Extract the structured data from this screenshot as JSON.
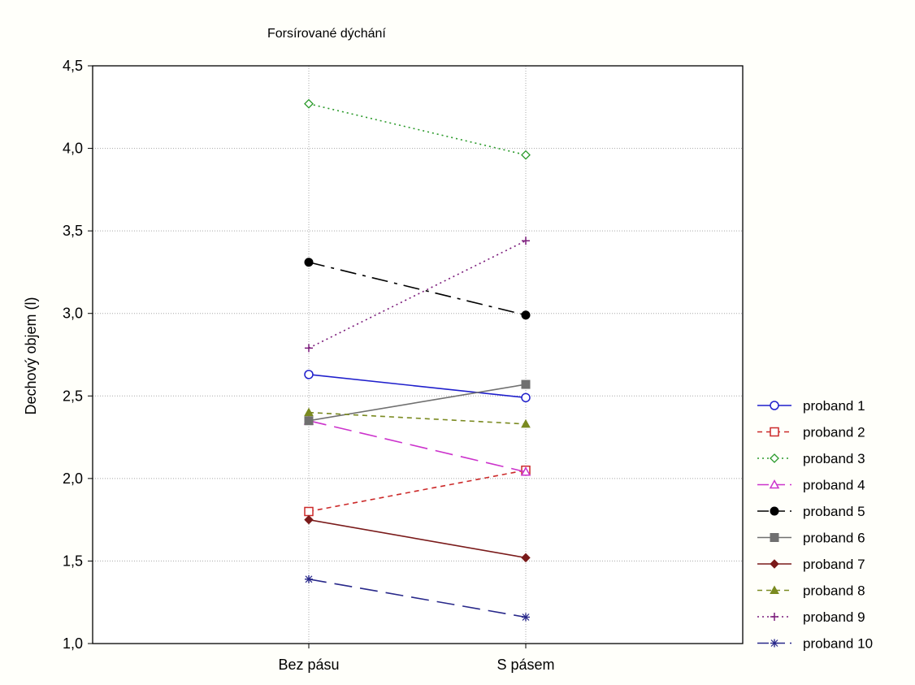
{
  "chart_data": {
    "type": "line",
    "title": "Forsírované dýchání",
    "xlabel": "",
    "ylabel": "Dechový objem (l)",
    "categories": [
      "Bez pásu",
      "S pásem"
    ],
    "ylim": [
      1.0,
      4.5
    ],
    "yticks": [
      1.0,
      1.5,
      2.0,
      2.5,
      3.0,
      3.5,
      4.0,
      4.5
    ],
    "ytick_labels": [
      "1,0",
      "1,5",
      "2,0",
      "2,5",
      "3,0",
      "3,5",
      "4,0",
      "4,5"
    ],
    "grid": true,
    "legend_position": "right",
    "series": [
      {
        "name": "proband 1",
        "values": [
          2.63,
          2.49
        ],
        "color": "#1f1fcc",
        "dash": "solid",
        "marker": "circle-open"
      },
      {
        "name": "proband 2",
        "values": [
          1.8,
          2.05
        ],
        "color": "#cc2a2a",
        "dash": "dashed",
        "marker": "square-open"
      },
      {
        "name": "proband 3",
        "values": [
          4.27,
          3.96
        ],
        "color": "#2a9a2a",
        "dash": "dotted",
        "marker": "diamond-open"
      },
      {
        "name": "proband 4",
        "values": [
          2.35,
          2.04
        ],
        "color": "#cc33cc",
        "dash": "longdash",
        "marker": "triangle-open"
      },
      {
        "name": "proband 5",
        "values": [
          3.31,
          2.99
        ],
        "color": "#000000",
        "dash": "dashdot",
        "marker": "circle-filled"
      },
      {
        "name": "proband 6",
        "values": [
          2.35,
          2.57
        ],
        "color": "#707070",
        "dash": "solid",
        "marker": "square-filled"
      },
      {
        "name": "proband 7",
        "values": [
          1.75,
          1.52
        ],
        "color": "#7a1a1a",
        "dash": "solid",
        "marker": "diamond-filled"
      },
      {
        "name": "proband 8",
        "values": [
          2.4,
          2.33
        ],
        "color": "#7a8a20",
        "dash": "dashed",
        "marker": "triangle-filled"
      },
      {
        "name": "proband 9",
        "values": [
          2.79,
          3.44
        ],
        "color": "#7a1a7a",
        "dash": "dotted",
        "marker": "plus"
      },
      {
        "name": "proband 10",
        "values": [
          1.39,
          1.16
        ],
        "color": "#28288a",
        "dash": "longdash",
        "marker": "asterisk"
      }
    ]
  }
}
